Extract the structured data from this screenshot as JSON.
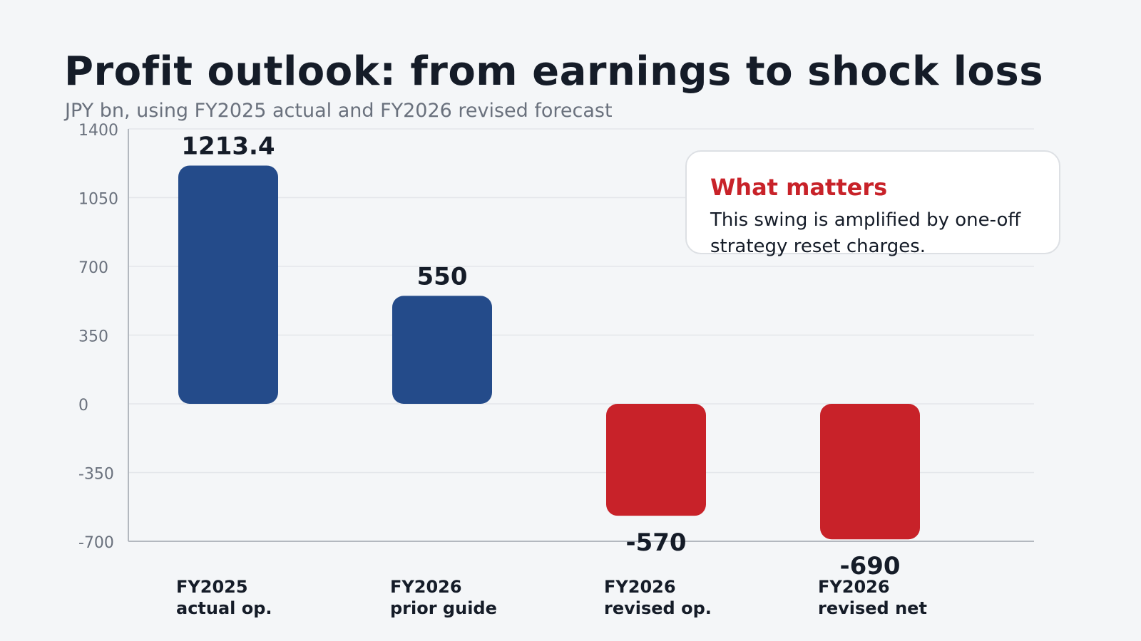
{
  "title": "Profit outlook: from earnings to shock loss",
  "subtitle": "JPY bn, using FY2025 actual and FY2026 revised forecast",
  "callout": {
    "title": "What matters",
    "body": "This swing is amplified by one-off strategy reset charges."
  },
  "colors": {
    "positive": "#244b8a",
    "negative": "#c82229",
    "text": "#151c28",
    "muted": "#6a717d",
    "grid": "#e3e6ea",
    "axis": "#b3b8bf"
  },
  "chart_data": {
    "type": "bar",
    "title": "Profit outlook: from earnings to shock loss",
    "ylabel": "JPY bn",
    "ylim": [
      -700,
      1400
    ],
    "yticks": [
      1400,
      1050,
      700,
      350,
      0,
      -350,
      -700
    ],
    "grid": true,
    "categories": [
      [
        "FY2025",
        "actual op."
      ],
      [
        "FY2026",
        "prior guide"
      ],
      [
        "FY2026",
        "revised op."
      ],
      [
        "FY2026",
        "revised net"
      ]
    ],
    "values": [
      1213.4,
      550,
      -570,
      -690
    ],
    "value_labels": [
      "1213.4",
      "550",
      "-570",
      "-690"
    ]
  }
}
